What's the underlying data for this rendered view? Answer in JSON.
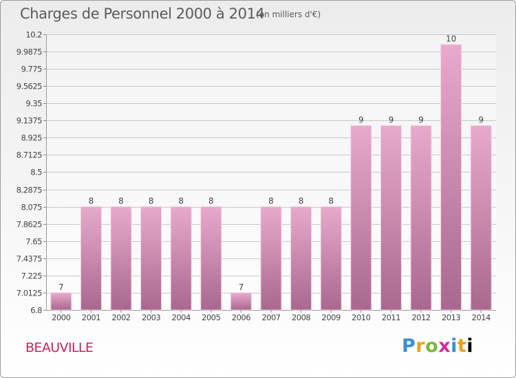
{
  "chart_data": {
    "type": "bar",
    "title": "Charges de Personnel 2000 à 2014",
    "subtitle": "(en milliers d'€)",
    "categories": [
      "2000",
      "2001",
      "2002",
      "2003",
      "2004",
      "2005",
      "2006",
      "2007",
      "2008",
      "2009",
      "2010",
      "2011",
      "2012",
      "2013",
      "2014"
    ],
    "values": [
      7,
      8,
      8,
      8,
      8,
      8,
      7,
      8,
      8,
      8,
      9,
      9,
      9,
      10,
      9
    ],
    "value_labels": [
      "7",
      "8",
      "8",
      "8",
      "8",
      "8",
      "7",
      "8",
      "8",
      "8",
      "9",
      "9",
      "9",
      "10",
      "9"
    ],
    "bar_tops": [
      7.0125,
      8.075,
      8.075,
      8.075,
      8.075,
      8.075,
      7.0125,
      8.075,
      8.075,
      8.075,
      9.075,
      9.075,
      9.075,
      10.075,
      9.075
    ],
    "yticks": [
      6.8,
      7.0125,
      7.225,
      7.4375,
      7.65,
      7.8625,
      8.075,
      8.2875,
      8.5,
      8.7125,
      8.925,
      9.1375,
      9.35,
      9.5625,
      9.775,
      9.9875,
      10.2
    ],
    "ytick_labels": [
      "6.8",
      "7.0125",
      "7.225",
      "7.4375",
      "7.65",
      "7.8625",
      "8.075",
      "8.2875",
      "8.5",
      "8.7125",
      "8.925",
      "9.1375",
      "9.35",
      "9.5625",
      "9.775",
      "9.9875",
      "10.2"
    ],
    "ylim": [
      6.8,
      10.2
    ],
    "xlabel": "",
    "ylabel": "",
    "grid": "horizontal",
    "bar_color_top": "#e7aacb",
    "bar_color_bottom": "#a9688f"
  },
  "footer": {
    "location": "BEAUVILLE",
    "logo_letters": [
      "P",
      "r",
      "o",
      "x",
      "i",
      "t",
      "i"
    ]
  }
}
